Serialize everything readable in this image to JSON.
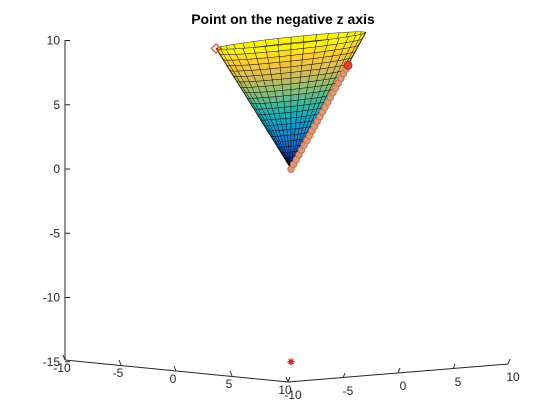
{
  "chart_data": {
    "type": "surface3d",
    "title": "Point on the negative z axis",
    "surface": {
      "shape": "cone",
      "apex": [
        0,
        0,
        0
      ],
      "z_range": [
        0,
        10
      ],
      "colormap": [
        "#352a87",
        "#0f5cdd",
        "#1481d6",
        "#06a4ca",
        "#2eb7a4",
        "#87bf77",
        "#d1bb59",
        "#fec832",
        "#f9fb0e"
      ],
      "edge_color": "#000000"
    },
    "axes": {
      "x": {
        "lim": [
          -10,
          10
        ],
        "ticks": [
          -10,
          -5,
          0,
          5,
          10
        ],
        "tick_labels": [
          "-10",
          "-5",
          "0",
          "5",
          "10"
        ]
      },
      "y": {
        "lim": [
          -10,
          10
        ],
        "ticks": [
          -10,
          -5,
          0,
          5,
          10
        ],
        "tick_labels": [
          "-10",
          "-5",
          "0",
          "5",
          "10"
        ]
      },
      "z": {
        "lim": [
          -15,
          10
        ],
        "ticks": [
          -15,
          -10,
          -5,
          0,
          5,
          10
        ],
        "tick_labels": [
          "-15",
          "-10",
          "-5",
          "0",
          "5",
          "10"
        ]
      }
    },
    "path": {
      "marker": "circle",
      "color": "#e8683a",
      "points": [
        [
          0.0,
          0
        ],
        [
          0.35,
          0.35
        ],
        [
          0.7,
          0.7
        ],
        [
          1.05,
          1.05
        ],
        [
          1.4,
          1.4
        ],
        [
          1.75,
          1.75
        ],
        [
          2.1,
          2.1
        ],
        [
          2.45,
          2.45
        ],
        [
          2.8,
          2.8
        ],
        [
          3.15,
          3.15
        ],
        [
          3.5,
          3.5
        ],
        [
          3.85,
          3.85
        ],
        [
          4.2,
          4.2
        ],
        [
          4.55,
          4.55
        ],
        [
          4.9,
          4.9
        ],
        [
          5.25,
          5.25
        ],
        [
          5.6,
          5.6
        ],
        [
          5.95,
          5.95
        ],
        [
          6.3,
          6.3
        ],
        [
          6.65,
          6.65
        ],
        [
          7.0,
          7.0
        ],
        [
          7.35,
          7.35
        ],
        [
          7.6,
          7.6
        ]
      ]
    },
    "markers": [
      {
        "name": "start-marker",
        "symbol": "diamond",
        "color": "#e8402a",
        "point": [
          -10,
          0,
          10
        ]
      },
      {
        "name": "end-marker",
        "symbol": "circle",
        "color": "#e8402a",
        "point": [
          7.6,
          0,
          7.6
        ]
      },
      {
        "name": "point-negative-z",
        "symbol": "asterisk",
        "color": "#d62020",
        "point": [
          0,
          0,
          -15
        ]
      }
    ]
  }
}
